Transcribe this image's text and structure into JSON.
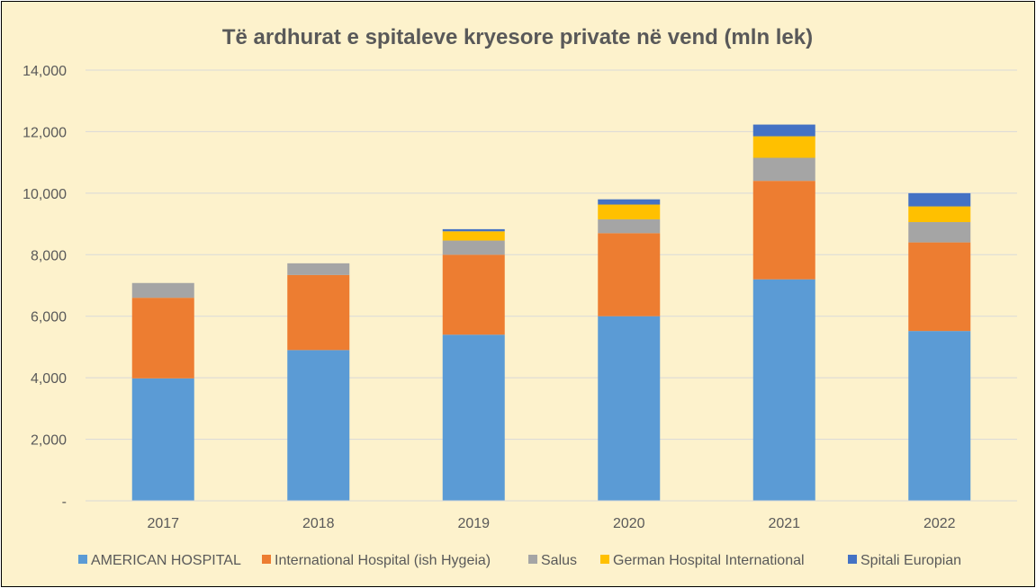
{
  "chart_data": {
    "type": "stacked-bar",
    "title": "Të ardhurat e spitaleve kryesore private në vend (mln lek)",
    "xlabel": "",
    "ylabel": "",
    "ylim": [
      0,
      14000
    ],
    "y_ticks": [
      0,
      2000,
      4000,
      6000,
      8000,
      10000,
      12000,
      14000
    ],
    "y_tick_labels": [
      "-",
      "2,000",
      "4,000",
      "6,000",
      "8,000",
      "10,000",
      "12,000",
      "14,000"
    ],
    "grid": true,
    "legend_position": "bottom",
    "categories": [
      "2017",
      "2018",
      "2019",
      "2020",
      "2021",
      "2022"
    ],
    "series": [
      {
        "name": "AMERICAN  HOSPITAL",
        "color": "#5b9bd5",
        "values": [
          3980,
          4900,
          5400,
          6000,
          7200,
          5520
        ]
      },
      {
        "name": "International Hospital (ish Hygeia)",
        "color": "#ed7d31",
        "values": [
          2620,
          2440,
          2600,
          2700,
          3200,
          2880
        ]
      },
      {
        "name": "Salus",
        "color": "#a5a5a5",
        "values": [
          480,
          380,
          460,
          450,
          750,
          660
        ]
      },
      {
        "name": "German Hospital International",
        "color": "#ffc000",
        "values": [
          0,
          0,
          300,
          480,
          700,
          510
        ]
      },
      {
        "name": "Spitali Europian",
        "color": "#4472c4",
        "values": [
          0,
          0,
          70,
          170,
          380,
          430
        ]
      }
    ]
  }
}
